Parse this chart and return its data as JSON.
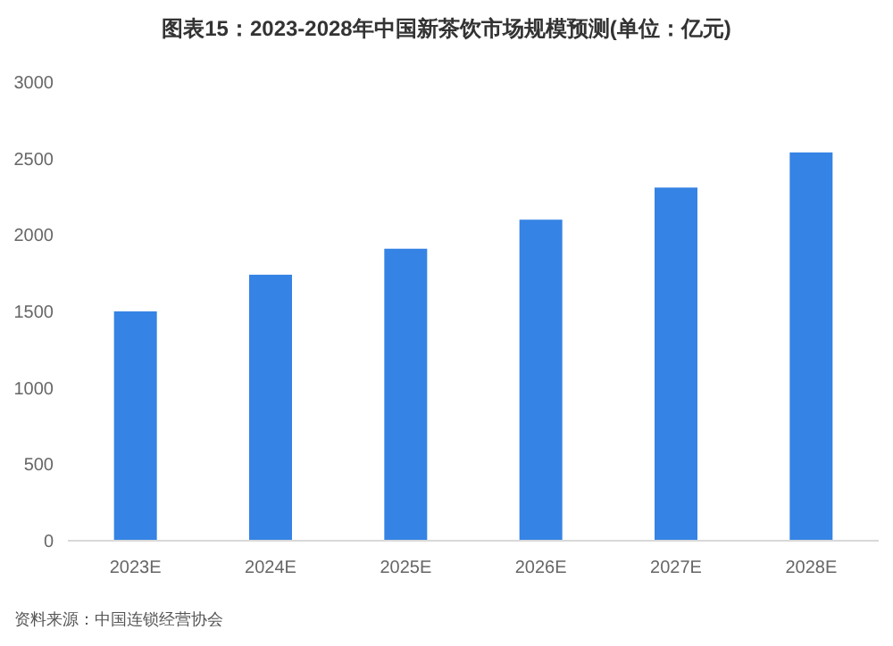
{
  "chart_data": {
    "type": "bar",
    "title": "图表15：2023-2028年中国新茶饮市场规模预测(单位：亿元)",
    "categories": [
      "2023E",
      "2024E",
      "2025E",
      "2026E",
      "2027E",
      "2028E"
    ],
    "values": [
      1500,
      1740,
      1910,
      2100,
      2310,
      2540
    ],
    "color": "#3583e4",
    "ylim": [
      0,
      3000
    ],
    "yticks": [
      0,
      500,
      1000,
      1500,
      2000,
      2500,
      3000
    ],
    "annotations": [
      "资料来源：中国连锁经营协会"
    ]
  }
}
